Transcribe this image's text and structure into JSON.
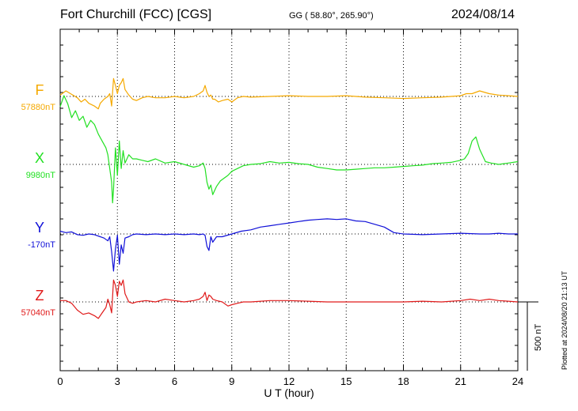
{
  "header": {
    "station": "Fort Churchill (FCC)  [CGS]",
    "coords": "GG ( 58.80°, 265.90°)",
    "date": "2024/08/14"
  },
  "plotted_note": "Plotted at 2024/08/20 21:13 UT",
  "chart_data": {
    "type": "line",
    "xlabel": "U T (hour)",
    "xlim": [
      0,
      24
    ],
    "xticks": [
      0,
      3,
      6,
      9,
      12,
      15,
      18,
      21,
      24
    ],
    "scale_bar_label": "500 nT",
    "scale_bar_value": 500,
    "series": [
      {
        "name": "F",
        "baseline_label": "57880nT",
        "baseline": 57880,
        "color": "#f5a900",
        "x": [
          0,
          0.3,
          0.6,
          0.9,
          1.1,
          1.3,
          1.5,
          1.8,
          2.0,
          2.1,
          2.3,
          2.5,
          2.6,
          2.7,
          2.8,
          2.9,
          3.0,
          3.1,
          3.2,
          3.3,
          3.4,
          3.6,
          3.8,
          4.0,
          4.3,
          4.6,
          5.0,
          5.5,
          6.0,
          6.5,
          7.0,
          7.3,
          7.5,
          7.6,
          7.7,
          7.8,
          7.9,
          8.0,
          8.1,
          8.3,
          8.5,
          8.8,
          9.0,
          9.3,
          9.6,
          10,
          11,
          12,
          13,
          14,
          15,
          16,
          17,
          18,
          19,
          20,
          20.5,
          21,
          21.3,
          21.6,
          22,
          22.5,
          23,
          23.5,
          24
        ],
        "y": [
          57890,
          57920,
          57895,
          57870,
          57840,
          57860,
          57830,
          57810,
          57790,
          57830,
          57860,
          57880,
          57900,
          57810,
          58010,
          57960,
          57900,
          57960,
          57980,
          58010,
          57930,
          57890,
          57860,
          57850,
          57870,
          57880,
          57870,
          57870,
          57880,
          57870,
          57880,
          57900,
          57920,
          57960,
          57910,
          57880,
          57890,
          57860,
          57860,
          57840,
          57850,
          57860,
          57840,
          57870,
          57880,
          57875,
          57880,
          57885,
          57880,
          57880,
          57885,
          57875,
          57870,
          57865,
          57870,
          57875,
          57880,
          57885,
          57900,
          57900,
          57920,
          57900,
          57890,
          57885,
          57880
        ]
      },
      {
        "name": "X",
        "baseline_label": "9980nT",
        "baseline": 9980,
        "color": "#22e022",
        "x": [
          0,
          0.2,
          0.4,
          0.6,
          0.8,
          1.0,
          1.2,
          1.4,
          1.6,
          1.8,
          2.0,
          2.2,
          2.4,
          2.5,
          2.6,
          2.7,
          2.75,
          2.8,
          2.9,
          3.0,
          3.1,
          3.2,
          3.3,
          3.4,
          3.6,
          3.8,
          4.0,
          4.3,
          4.6,
          5.0,
          5.5,
          6.0,
          6.5,
          7.0,
          7.3,
          7.5,
          7.6,
          7.7,
          7.8,
          7.9,
          8.0,
          8.2,
          8.4,
          8.6,
          8.8,
          9.0,
          9.3,
          9.6,
          10,
          10.5,
          11,
          11.5,
          12,
          12.5,
          13,
          13.5,
          14,
          14.5,
          15,
          15.5,
          16,
          16.5,
          17,
          17.5,
          18,
          18.5,
          19,
          19.5,
          20,
          20.5,
          21,
          21.2,
          21.4,
          21.6,
          21.8,
          22,
          22.3,
          22.6,
          23,
          23.5,
          24
        ],
        "y": [
          10400,
          10480,
          10420,
          10320,
          10370,
          10300,
          10330,
          10250,
          10300,
          10270,
          10200,
          10150,
          10100,
          10050,
          9950,
          9850,
          9700,
          9800,
          10100,
          9900,
          10150,
          9950,
          10080,
          9990,
          10050,
          10020,
          10020,
          10010,
          10000,
          10020,
          9990,
          10000,
          9980,
          9960,
          9970,
          9990,
          9950,
          9850,
          9800,
          9830,
          9760,
          9820,
          9860,
          9880,
          9900,
          9930,
          9950,
          9970,
          9980,
          9985,
          10000,
          9990,
          9995,
          9985,
          9980,
          9960,
          9950,
          9940,
          9940,
          9945,
          9950,
          9955,
          9955,
          9960,
          9965,
          9970,
          9975,
          9985,
          9990,
          9995,
          10010,
          10020,
          10060,
          10150,
          10180,
          10090,
          10000,
          9990,
          9980,
          9990,
          10000
        ]
      },
      {
        "name": "Y",
        "baseline_label": "-170nT",
        "baseline": -170,
        "color": "#1010d8",
        "x": [
          0,
          0.3,
          0.6,
          0.9,
          1.2,
          1.5,
          1.8,
          2.1,
          2.3,
          2.5,
          2.6,
          2.7,
          2.8,
          2.9,
          3.0,
          3.1,
          3.2,
          3.3,
          3.4,
          3.6,
          3.8,
          4.0,
          4.5,
          5.0,
          5.5,
          6.0,
          6.5,
          7.0,
          7.3,
          7.5,
          7.6,
          7.7,
          7.8,
          7.9,
          8.0,
          8.2,
          8.5,
          9.0,
          9.5,
          10,
          10.5,
          11,
          11.5,
          12,
          12.5,
          13,
          13.5,
          14,
          14.5,
          15,
          15.5,
          16,
          16.5,
          17,
          17.5,
          18,
          19,
          20,
          21,
          22,
          22.5,
          23,
          23.5,
          24
        ],
        "y": [
          -150,
          -160,
          -155,
          -175,
          -180,
          -170,
          -175,
          -190,
          -200,
          -220,
          -190,
          -300,
          -440,
          -280,
          -180,
          -390,
          -250,
          -310,
          -200,
          -190,
          -175,
          -170,
          -175,
          -170,
          -175,
          -170,
          -175,
          -170,
          -175,
          -170,
          -180,
          -260,
          -290,
          -190,
          -230,
          -190,
          -190,
          -170,
          -150,
          -140,
          -120,
          -110,
          -100,
          -90,
          -80,
          -70,
          -65,
          -60,
          -65,
          -60,
          -75,
          -80,
          -100,
          -120,
          -160,
          -170,
          -175,
          -170,
          -165,
          -170,
          -170,
          -165,
          -170,
          -170
        ]
      },
      {
        "name": "Z",
        "baseline_label": "57040nT",
        "baseline": 57040,
        "color": "#e01a1a",
        "x": [
          0,
          0.3,
          0.6,
          0.9,
          1.2,
          1.5,
          1.8,
          2.0,
          2.2,
          2.4,
          2.5,
          2.6,
          2.7,
          2.8,
          2.9,
          3.0,
          3.1,
          3.2,
          3.3,
          3.4,
          3.6,
          3.8,
          4.0,
          4.5,
          5.0,
          5.5,
          6.0,
          6.5,
          7.0,
          7.3,
          7.5,
          7.6,
          7.7,
          7.8,
          7.9,
          8.0,
          8.2,
          8.5,
          8.8,
          9.0,
          9.3,
          9.6,
          10,
          11,
          12,
          13,
          14,
          15,
          16,
          17,
          18,
          19,
          20,
          21,
          21.5,
          22,
          22.5,
          23,
          23.5,
          24
        ],
        "y": [
          57050,
          57050,
          57030,
          56980,
          56950,
          56960,
          56940,
          56920,
          56960,
          57000,
          57060,
          57020,
          56960,
          57200,
          57160,
          57080,
          57190,
          57160,
          57200,
          57100,
          57040,
          57030,
          57040,
          57050,
          57040,
          57060,
          57050,
          57040,
          57050,
          57060,
          57080,
          57110,
          57050,
          57090,
          57080,
          57060,
          57050,
          57040,
          57010,
          57020,
          57030,
          57040,
          57040,
          57050,
          57050,
          57045,
          57040,
          57040,
          57040,
          57040,
          57040,
          57045,
          57040,
          57050,
          57060,
          57050,
          57060,
          57050,
          57045,
          57040
        ]
      }
    ]
  }
}
